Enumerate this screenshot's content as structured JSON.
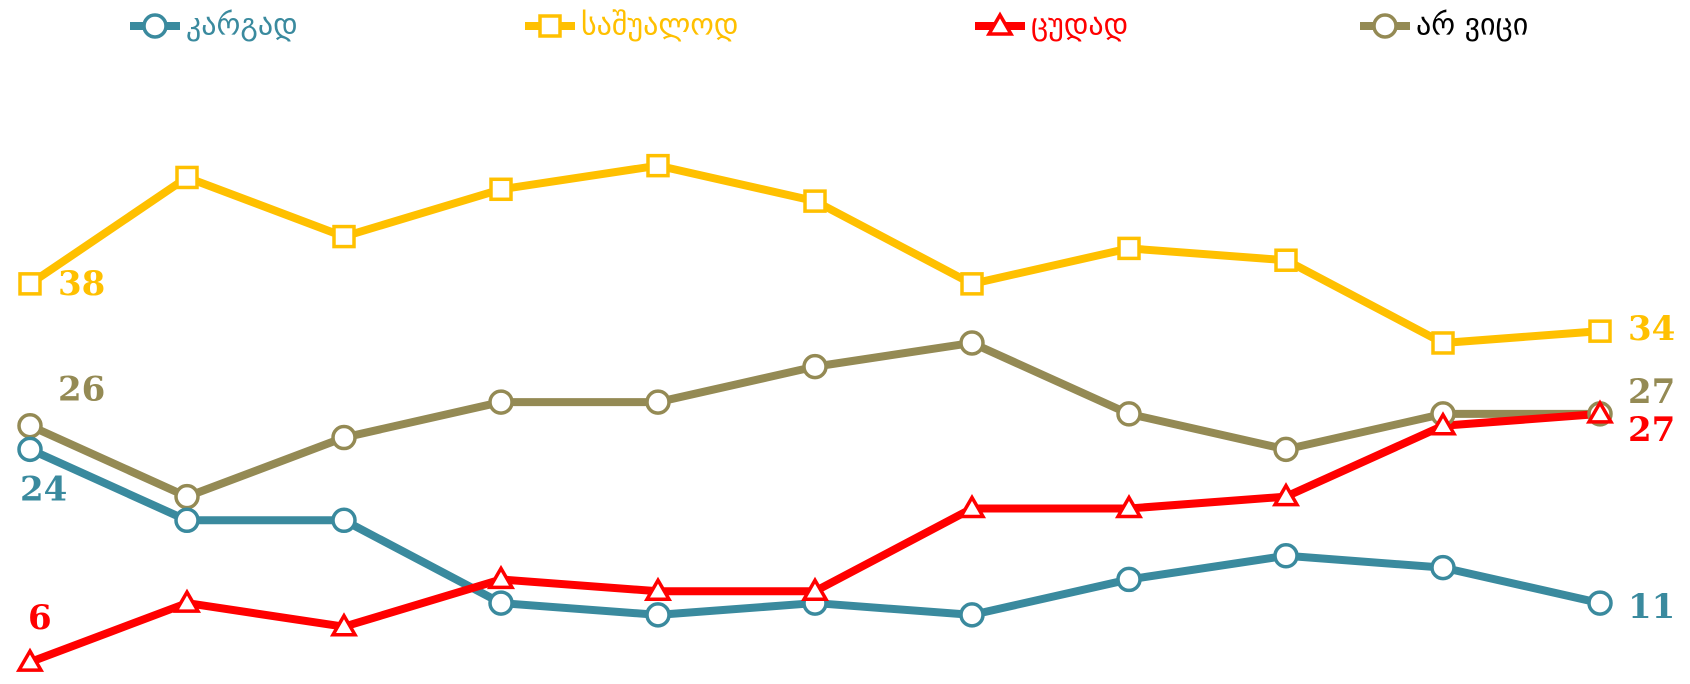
{
  "chart_data": {
    "type": "line",
    "categories": [
      null,
      null,
      null,
      null,
      null,
      null,
      null,
      null,
      null,
      null,
      null
    ],
    "ylim": [
      5,
      50
    ],
    "legend": "top",
    "series": [
      {
        "name": "კარგად",
        "color": "#3a8a9e",
        "marker": "circle",
        "values": [
          24,
          18,
          18,
          11,
          10,
          11,
          10,
          13,
          15,
          14,
          11
        ]
      },
      {
        "name": "საშუალოდ",
        "color": "#ffc000",
        "marker": "square",
        "values": [
          38,
          47,
          42,
          46,
          48,
          45,
          38,
          41,
          40,
          33,
          34
        ]
      },
      {
        "name": "ცუდად",
        "color": "#ff0000",
        "marker": "triangle",
        "values": [
          6,
          11,
          9,
          13,
          12,
          12,
          19,
          19,
          20,
          26,
          27
        ]
      },
      {
        "name": "არ ვიცი",
        "color": "#948a54",
        "marker": "circle",
        "values": [
          26,
          20,
          25,
          28,
          28,
          31,
          33,
          27,
          24,
          27,
          27
        ]
      }
    ]
  }
}
